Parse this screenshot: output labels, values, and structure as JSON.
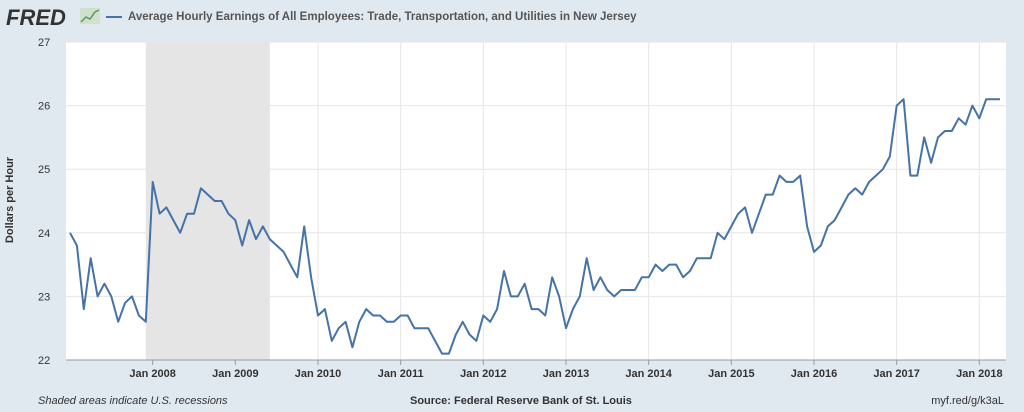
{
  "brand": {
    "logo_text": "FRED",
    "logo_icon": "trend-line-icon"
  },
  "legend": {
    "series_label": "Average Hourly Earnings of All Employees: Trade, Transportation, and Utilities in New Jersey",
    "color": "#4572a7"
  },
  "footer": {
    "note": "Shaded areas indicate U.S. recessions",
    "source": "Source: Federal Reserve Bank of St. Louis",
    "link": "myf.red/g/k3aL"
  },
  "chart_data": {
    "type": "line",
    "title": "",
    "ylabel": "Dollars per Hour",
    "xlabel": "",
    "ylim": [
      22,
      27
    ],
    "yticks": [
      22,
      23,
      24,
      25,
      26,
      27
    ],
    "xlim": [
      "2007-01",
      "2018-04"
    ],
    "xticks": [
      {
        "date": "2008-01",
        "label": "Jan 2008"
      },
      {
        "date": "2009-01",
        "label": "Jan 2009"
      },
      {
        "date": "2010-01",
        "label": "Jan 2010"
      },
      {
        "date": "2011-01",
        "label": "Jan 2011"
      },
      {
        "date": "2012-01",
        "label": "Jan 2012"
      },
      {
        "date": "2013-01",
        "label": "Jan 2013"
      },
      {
        "date": "2014-01",
        "label": "Jan 2014"
      },
      {
        "date": "2015-01",
        "label": "Jan 2015"
      },
      {
        "date": "2016-01",
        "label": "Jan 2016"
      },
      {
        "date": "2017-01",
        "label": "Jan 2017"
      },
      {
        "date": "2018-01",
        "label": "Jan 2018"
      }
    ],
    "recessions": [
      {
        "start": "2007-12",
        "end": "2009-06",
        "color": "#e5e5e5"
      }
    ],
    "grid": true,
    "series": [
      {
        "name": "Average Hourly Earnings of All Employees: Trade, Transportation, and Utilities in New Jersey",
        "color": "#4572a7",
        "values": [
          24.0,
          23.8,
          22.8,
          23.6,
          23.0,
          23.2,
          23.0,
          22.6,
          22.9,
          23.0,
          22.7,
          22.6,
          24.8,
          24.3,
          24.4,
          24.2,
          24.0,
          24.3,
          24.3,
          24.7,
          24.6,
          24.5,
          24.5,
          24.3,
          24.2,
          23.8,
          24.2,
          23.9,
          24.1,
          23.9,
          23.8,
          23.7,
          23.5,
          23.3,
          24.1,
          23.3,
          22.7,
          22.8,
          22.3,
          22.5,
          22.6,
          22.2,
          22.6,
          22.8,
          22.7,
          22.7,
          22.6,
          22.6,
          22.7,
          22.7,
          22.5,
          22.5,
          22.5,
          22.3,
          22.1,
          22.1,
          22.4,
          22.6,
          22.4,
          22.3,
          22.7,
          22.6,
          22.8,
          23.4,
          23.0,
          23.0,
          23.2,
          22.8,
          22.8,
          22.7,
          23.3,
          23.0,
          22.5,
          22.8,
          23.0,
          23.6,
          23.1,
          23.3,
          23.1,
          23.0,
          23.1,
          23.1,
          23.1,
          23.3,
          23.3,
          23.5,
          23.4,
          23.5,
          23.5,
          23.3,
          23.4,
          23.6,
          23.6,
          23.6,
          24.0,
          23.9,
          24.1,
          24.3,
          24.4,
          24.0,
          24.3,
          24.6,
          24.6,
          24.9,
          24.8,
          24.8,
          24.9,
          24.1,
          23.7,
          23.8,
          24.1,
          24.2,
          24.4,
          24.6,
          24.7,
          24.6,
          24.8,
          24.9,
          25.0,
          25.2,
          26.0,
          26.1,
          24.9,
          24.9,
          25.5,
          25.1,
          25.5,
          25.6,
          25.6,
          25.8,
          25.7,
          26.0,
          25.8,
          26.1,
          26.1,
          26.1
        ]
      }
    ]
  }
}
